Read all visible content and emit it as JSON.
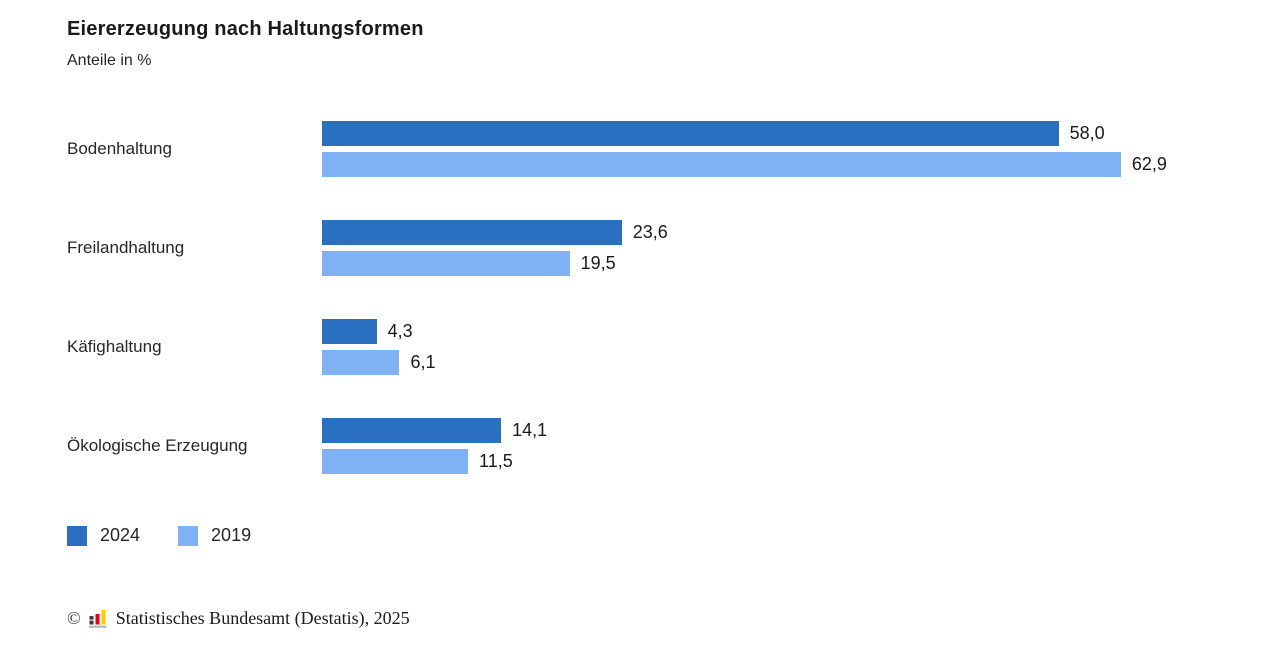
{
  "header": {
    "title": "Eiererzeugung nach Haltungsformen",
    "subtitle": "Anteile in %"
  },
  "chart_data": {
    "type": "bar",
    "orientation": "horizontal",
    "title": "Eiererzeugung nach Haltungsformen",
    "subtitle": "Anteile in %",
    "xlabel": "",
    "ylabel": "",
    "unit": "%",
    "grid": false,
    "legend_position": "bottom",
    "xlim": [
      0,
      75
    ],
    "categories": [
      "Bodenhaltung",
      "Freilandhaltung",
      "Käfighaltung",
      "Ökologische Erzeugung"
    ],
    "series": [
      {
        "name": "2024",
        "color": "#2a6fc0",
        "values": [
          58.0,
          23.6,
          4.3,
          14.1
        ],
        "labels": [
          "58,0",
          "23,6",
          "4,3",
          "14,1"
        ]
      },
      {
        "name": "2019",
        "color": "#7fb2f5",
        "values": [
          62.9,
          19.5,
          6.1,
          11.5
        ],
        "labels": [
          "62,9",
          "19,5",
          "6,1",
          "11,5"
        ]
      }
    ]
  },
  "footer": {
    "copyright": "©",
    "source": "Statistisches Bundesamt (Destatis), 2025",
    "logo_colors": {
      "bar1": "#3c3c3c",
      "bar2": "#e2001a",
      "bar3": "#ffcc00",
      "base": "#b2b2b2"
    }
  }
}
